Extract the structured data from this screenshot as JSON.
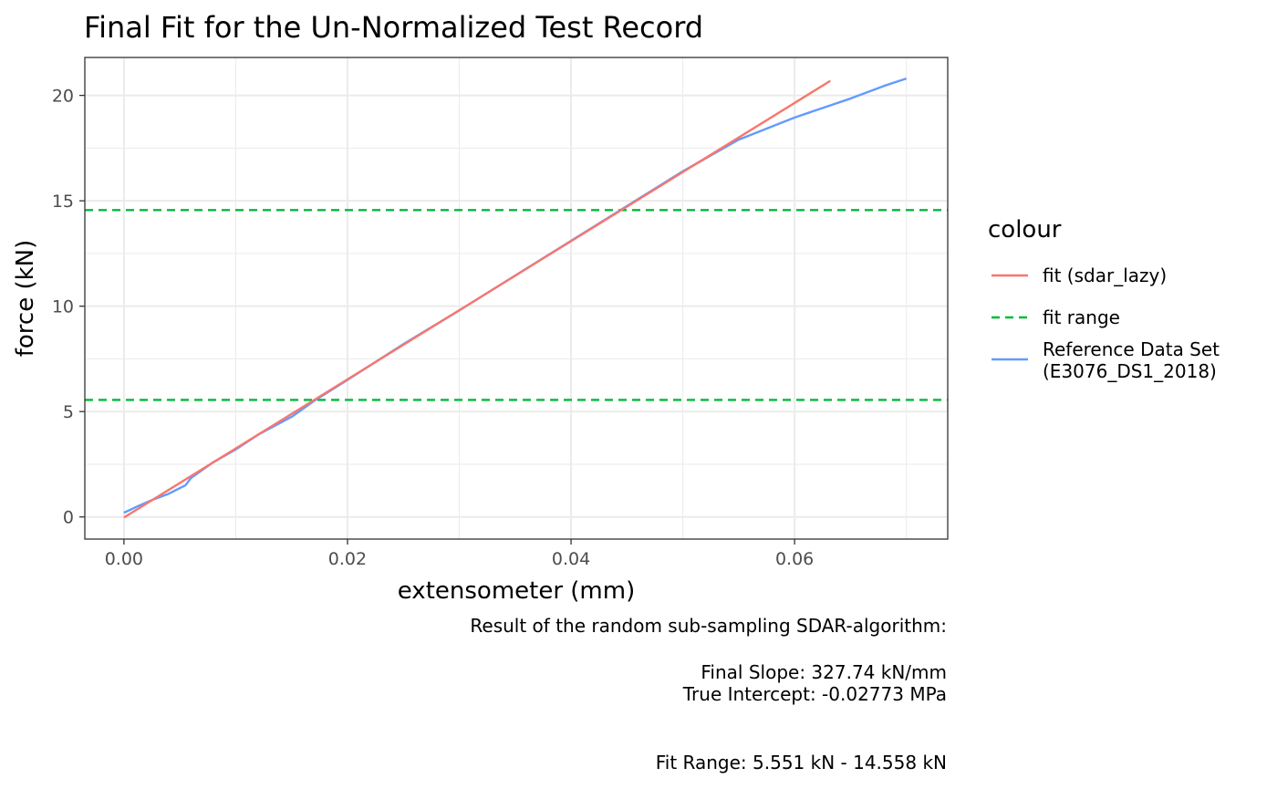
{
  "chart_data": {
    "type": "line",
    "title": "Final Fit for the Un-Normalized Test Record",
    "xlabel": "extensometer (mm)",
    "ylabel": "force (kN)",
    "xlim": [
      -0.0035,
      0.0737
    ],
    "ylim": [
      -1.05,
      21.8
    ],
    "x_ticks": [
      0.0,
      0.02,
      0.04,
      0.06
    ],
    "x_tick_labels": [
      "0.00",
      "0.02",
      "0.04",
      "0.06"
    ],
    "y_ticks": [
      0,
      5,
      10,
      15,
      20
    ],
    "y_tick_labels": [
      "0",
      "5",
      "10",
      "15",
      "20"
    ],
    "grid": true,
    "legend": {
      "title": "colour",
      "placement": "right",
      "items": [
        {
          "label": "fit (sdar_lazy)",
          "color": "#F8766D",
          "style": "solid"
        },
        {
          "label": "fit range",
          "color": "#00BA38",
          "style": "dashed"
        },
        {
          "label": "Reference Data Set",
          "label2": "(E3076_DS1_2018)",
          "color": "#619CFF",
          "style": "solid"
        }
      ]
    },
    "series": [
      {
        "name": "fit (sdar_lazy)",
        "color": "#F8766D",
        "x": [
          0.0,
          0.0632
        ],
        "y": [
          -0.028,
          20.69
        ]
      },
      {
        "name": "Reference Data Set (E3076_DS1_2018)",
        "color": "#619CFF",
        "x": [
          0.0,
          0.0012,
          0.0025,
          0.004,
          0.0055,
          0.006,
          0.008,
          0.01,
          0.012,
          0.015,
          0.017,
          0.02,
          0.025,
          0.03,
          0.035,
          0.04,
          0.045,
          0.05,
          0.055,
          0.06,
          0.065,
          0.068,
          0.07
        ],
        "y": [
          0.2,
          0.5,
          0.8,
          1.1,
          1.5,
          1.85,
          2.6,
          3.2,
          3.9,
          4.75,
          5.5,
          6.5,
          8.2,
          9.8,
          11.45,
          13.1,
          14.75,
          16.4,
          17.9,
          18.95,
          19.85,
          20.45,
          20.8
        ]
      }
    ],
    "hlines": [
      {
        "name": "fit range",
        "color": "#00BA38",
        "y": 5.551
      },
      {
        "name": "fit range",
        "color": "#00BA38",
        "y": 14.558
      }
    ]
  },
  "caption": {
    "line1": "Result of the random sub-sampling SDAR-algorithm:",
    "line2": "Final Slope: 327.74 kN/mm",
    "line3": "True Intercept: -0.02773 MPa",
    "line4": "Fit Range: 5.551 kN - 14.558 kN"
  }
}
